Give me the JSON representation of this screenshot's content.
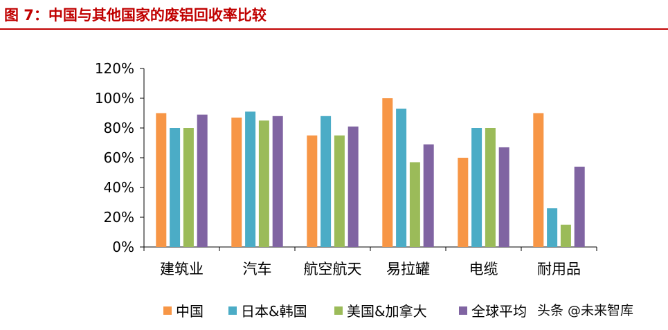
{
  "title": "图 7：中国与其他国家的废铝回收率比较",
  "watermark": "头条 @未来智库",
  "colors": {
    "title": "#c00000",
    "series": [
      "#f79646",
      "#4bacc6",
      "#9bbb59",
      "#8064a2"
    ]
  },
  "chart_data": {
    "type": "bar",
    "categories": [
      "建筑业",
      "汽车",
      "航空航天",
      "易拉罐",
      "电缆",
      "耐用品"
    ],
    "series": [
      {
        "name": "中国",
        "values": [
          90,
          87,
          75,
          100,
          60,
          90
        ]
      },
      {
        "name": "日本&韩国",
        "values": [
          80,
          91,
          88,
          93,
          80,
          26
        ]
      },
      {
        "name": "美国&加拿大",
        "values": [
          80,
          85,
          75,
          57,
          80,
          15
        ]
      },
      {
        "name": "全球平均",
        "values": [
          89,
          88,
          81,
          69,
          67,
          54
        ]
      }
    ],
    "ylim": [
      0,
      120
    ],
    "yticks": [
      0,
      20,
      40,
      60,
      80,
      100,
      120
    ],
    "ytick_labels": [
      "0%",
      "20%",
      "40%",
      "60%",
      "80%",
      "100%",
      "120%"
    ],
    "grid": false,
    "legend_position": "bottom"
  }
}
